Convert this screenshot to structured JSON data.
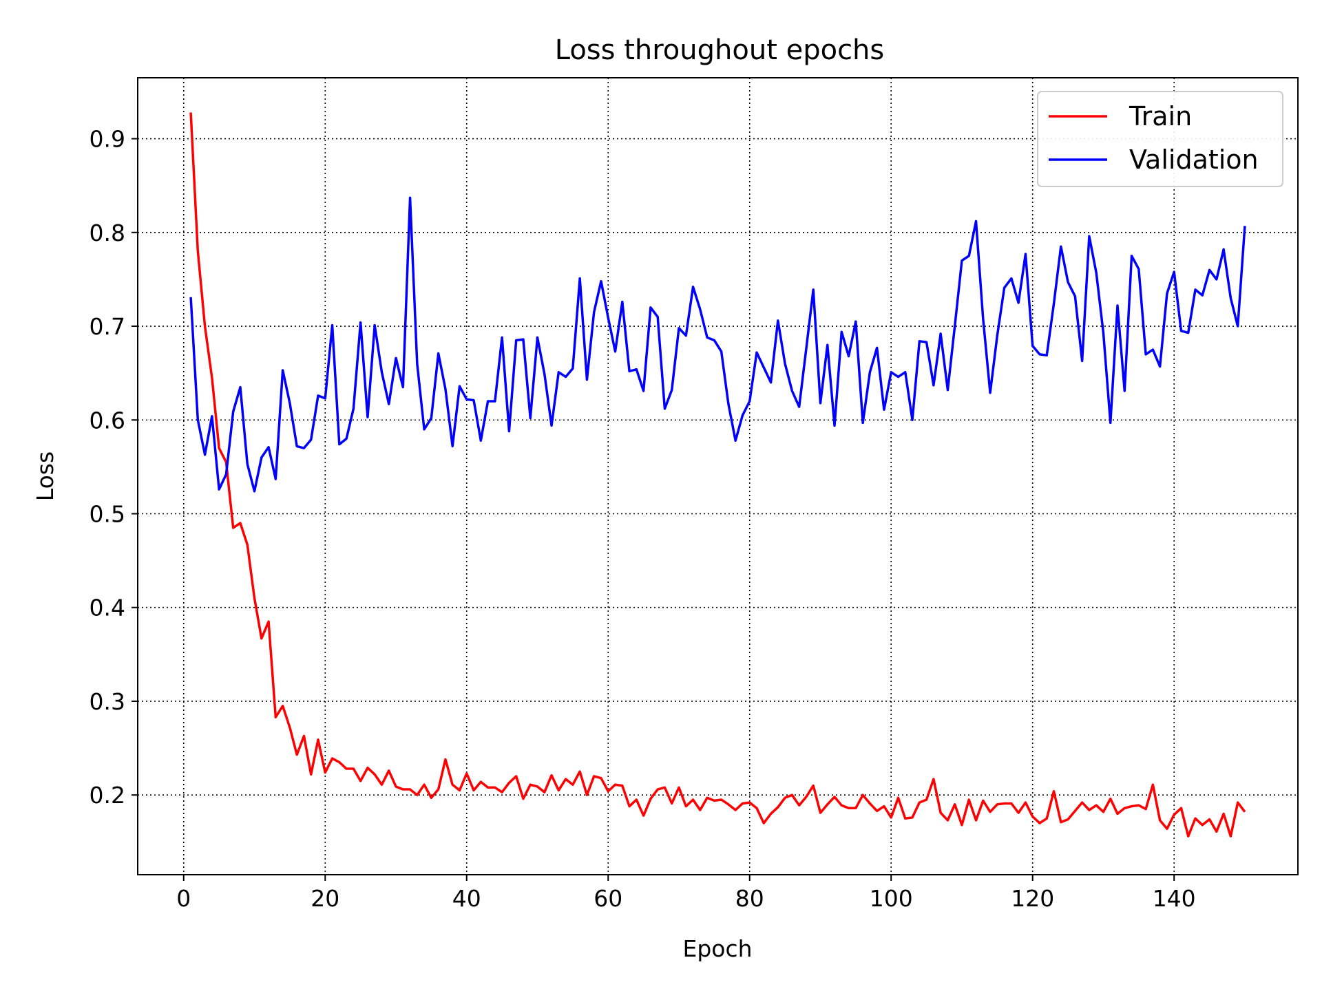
{
  "chart_data": {
    "type": "line",
    "title": "Loss throughout epochs",
    "xlabel": "Epoch",
    "ylabel": "Loss",
    "xlim": [
      -6.5,
      157.5
    ],
    "ylim": [
      0.115,
      0.965
    ],
    "xticks": [
      0,
      20,
      40,
      60,
      80,
      100,
      120,
      140
    ],
    "yticks": [
      0.2,
      0.3,
      0.4,
      0.5,
      0.6,
      0.7,
      0.8,
      0.9
    ],
    "grid": true,
    "legend": "top-right",
    "x_start": 1,
    "series": [
      {
        "name": "Train",
        "color": "#ff0000",
        "values": [
          0.928,
          0.78,
          0.7,
          0.645,
          0.57,
          0.555,
          0.485,
          0.49,
          0.467,
          0.41,
          0.367,
          0.385,
          0.283,
          0.295,
          0.272,
          0.243,
          0.263,
          0.222,
          0.259,
          0.224,
          0.239,
          0.235,
          0.228,
          0.228,
          0.215,
          0.229,
          0.222,
          0.211,
          0.226,
          0.209,
          0.206,
          0.206,
          0.2,
          0.211,
          0.197,
          0.206,
          0.238,
          0.211,
          0.205,
          0.223,
          0.205,
          0.214,
          0.208,
          0.208,
          0.203,
          0.213,
          0.22,
          0.196,
          0.211,
          0.209,
          0.203,
          0.221,
          0.205,
          0.217,
          0.211,
          0.225,
          0.2,
          0.22,
          0.218,
          0.204,
          0.211,
          0.21,
          0.188,
          0.195,
          0.178,
          0.196,
          0.206,
          0.208,
          0.191,
          0.208,
          0.188,
          0.195,
          0.184,
          0.197,
          0.194,
          0.195,
          0.19,
          0.184,
          0.191,
          0.192,
          0.186,
          0.17,
          0.18,
          0.187,
          0.197,
          0.2,
          0.189,
          0.198,
          0.21,
          0.181,
          0.19,
          0.198,
          0.189,
          0.186,
          0.186,
          0.2,
          0.191,
          0.183,
          0.188,
          0.176,
          0.197,
          0.175,
          0.176,
          0.192,
          0.195,
          0.217,
          0.181,
          0.173,
          0.19,
          0.168,
          0.195,
          0.173,
          0.194,
          0.182,
          0.19,
          0.191,
          0.191,
          0.181,
          0.192,
          0.177,
          0.17,
          0.175,
          0.204,
          0.171,
          0.174,
          0.183,
          0.192,
          0.184,
          0.189,
          0.182,
          0.196,
          0.18,
          0.186,
          0.188,
          0.189,
          0.185,
          0.211,
          0.173,
          0.164,
          0.179,
          0.186,
          0.156,
          0.175,
          0.168,
          0.174,
          0.161,
          0.18,
          0.156,
          0.192,
          0.182
        ]
      },
      {
        "name": "Validation",
        "color": "#0000ff",
        "values": [
          0.731,
          0.6,
          0.563,
          0.604,
          0.526,
          0.542,
          0.609,
          0.635,
          0.553,
          0.524,
          0.56,
          0.571,
          0.537,
          0.653,
          0.618,
          0.572,
          0.57,
          0.579,
          0.626,
          0.623,
          0.701,
          0.574,
          0.58,
          0.612,
          0.704,
          0.603,
          0.701,
          0.651,
          0.617,
          0.666,
          0.635,
          0.837,
          0.66,
          0.59,
          0.602,
          0.671,
          0.633,
          0.572,
          0.636,
          0.622,
          0.621,
          0.578,
          0.62,
          0.62,
          0.688,
          0.588,
          0.685,
          0.686,
          0.602,
          0.688,
          0.649,
          0.594,
          0.651,
          0.646,
          0.655,
          0.751,
          0.643,
          0.715,
          0.748,
          0.709,
          0.673,
          0.726,
          0.652,
          0.654,
          0.631,
          0.72,
          0.71,
          0.612,
          0.632,
          0.698,
          0.69,
          0.742,
          0.718,
          0.688,
          0.685,
          0.673,
          0.617,
          0.578,
          0.605,
          0.62,
          0.672,
          0.656,
          0.64,
          0.706,
          0.66,
          0.631,
          0.614,
          0.676,
          0.739,
          0.618,
          0.68,
          0.594,
          0.694,
          0.668,
          0.705,
          0.597,
          0.651,
          0.677,
          0.611,
          0.651,
          0.646,
          0.651,
          0.6,
          0.684,
          0.683,
          0.637,
          0.692,
          0.632,
          0.7,
          0.77,
          0.775,
          0.812,
          0.708,
          0.629,
          0.69,
          0.741,
          0.751,
          0.725,
          0.777,
          0.679,
          0.67,
          0.669,
          0.724,
          0.785,
          0.747,
          0.732,
          0.663,
          0.796,
          0.757,
          0.693,
          0.597,
          0.722,
          0.631,
          0.775,
          0.761,
          0.67,
          0.675,
          0.657,
          0.735,
          0.758,
          0.695,
          0.693,
          0.739,
          0.733,
          0.76,
          0.75,
          0.782,
          0.73,
          0.7,
          0.807
        ]
      }
    ]
  }
}
